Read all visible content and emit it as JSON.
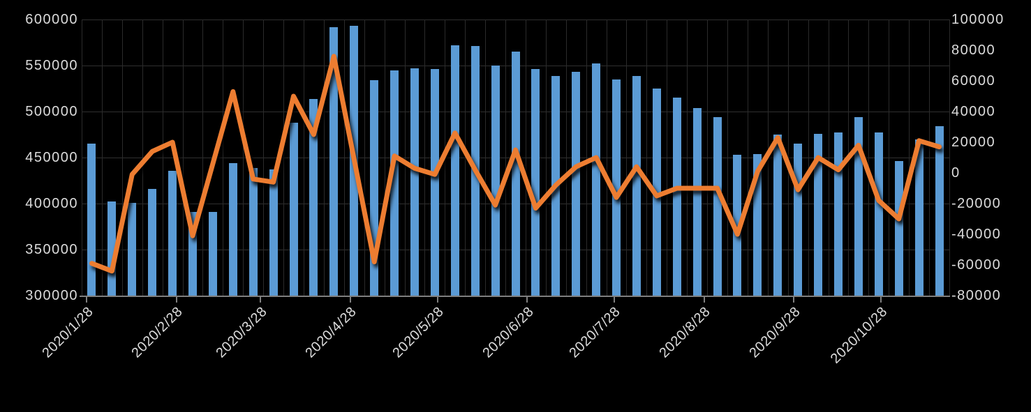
{
  "chart_data": {
    "type": "combo-bar-line",
    "title": "",
    "background": "#000000",
    "grid": true,
    "legend": "none",
    "n_points": 43,
    "x_tick_labels": [
      "2020/1/28",
      "2020/2/28",
      "2020/3/28",
      "2020/4/28",
      "2020/5/28",
      "2020/6/28",
      "2020/7/28",
      "2020/8/28",
      "2020/9/28",
      "2020/10/28"
    ],
    "left_axis": {
      "tick_labels": [
        "600000",
        "550000",
        "500000",
        "450000",
        "400000",
        "350000",
        "300000"
      ],
      "min": 300000,
      "max": 600000,
      "step": 50000
    },
    "right_axis": {
      "tick_labels": [
        "100000",
        "80000",
        "60000",
        "40000",
        "20000",
        "0",
        "-20000",
        "-40000",
        "-60000",
        "-80000"
      ],
      "min": -80000,
      "max": 100000,
      "step": 20000
    },
    "series": [
      {
        "name": "bars",
        "type": "bar",
        "axis": "left",
        "color": "#5B9BD5",
        "values": [
          465000,
          402000,
          401000,
          416000,
          436000,
          391000,
          391000,
          444000,
          439000,
          437000,
          488000,
          514000,
          592000,
          593000,
          534000,
          545000,
          547000,
          546000,
          572000,
          571000,
          550000,
          565000,
          546000,
          539000,
          543000,
          552000,
          535000,
          539000,
          525000,
          515000,
          504000,
          494000,
          453000,
          454000,
          475000,
          465000,
          476000,
          477000,
          494000,
          477000,
          446000,
          470000,
          484000
        ]
      },
      {
        "name": "line",
        "type": "line",
        "axis": "right",
        "color": "#ED7D31",
        "values": [
          -59000,
          -64000,
          -1000,
          14000,
          20000,
          -41000,
          6000,
          53000,
          -4000,
          -6000,
          50000,
          25000,
          76000,
          9000,
          -58000,
          11000,
          3000,
          -1000,
          26000,
          2000,
          -21000,
          15000,
          -23000,
          -8000,
          4000,
          10000,
          -16000,
          4000,
          -15000,
          -10000,
          -10000,
          -10000,
          -40000,
          1000,
          23000,
          -11000,
          10000,
          2000,
          18000,
          -18000,
          -30000,
          21000,
          17000
        ]
      }
    ]
  }
}
